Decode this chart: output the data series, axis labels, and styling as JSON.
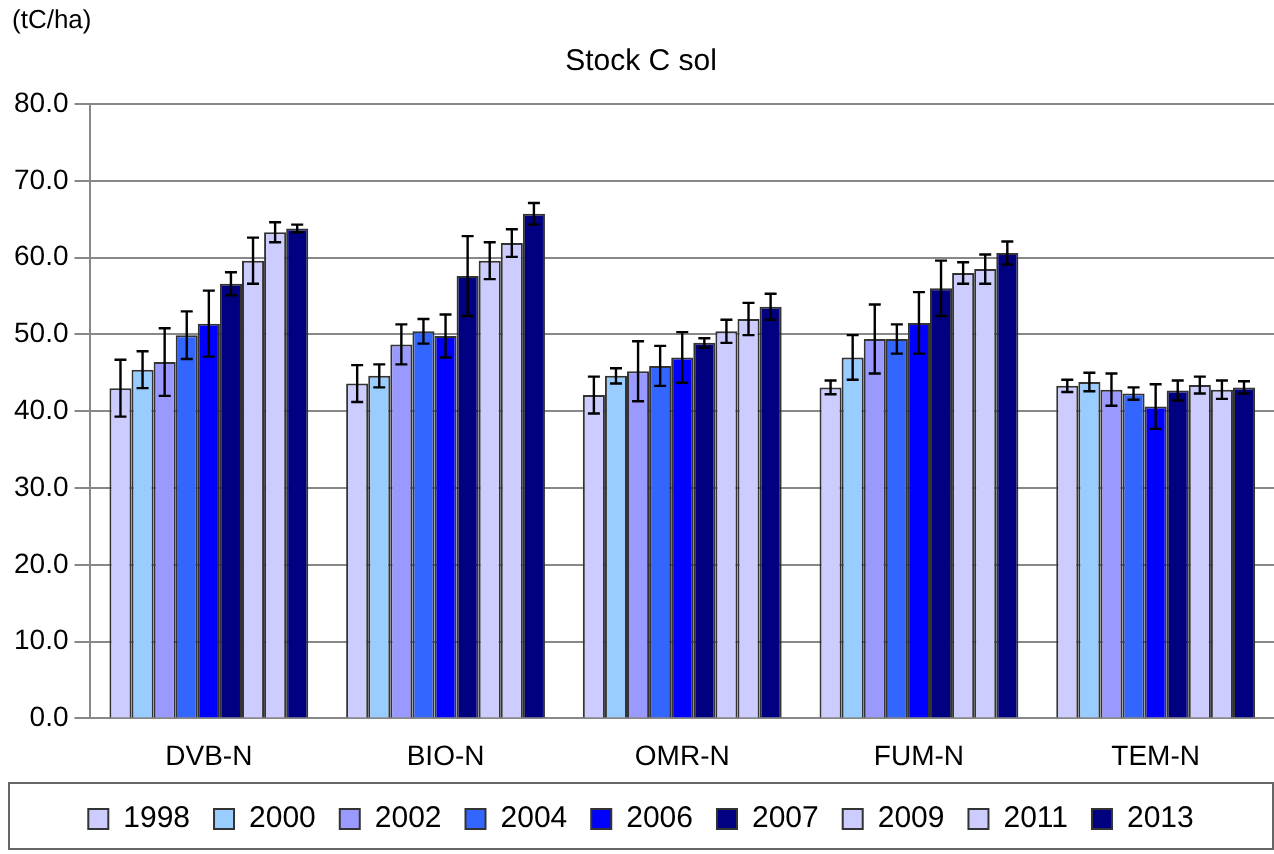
{
  "chart_data": {
    "type": "bar",
    "title": "Stock C sol",
    "ylabel": "(tC/ha)",
    "categories": [
      "DVB-N",
      "BIO-N",
      "OMR-N",
      "FUM-N",
      "TEM-N"
    ],
    "series": [
      {
        "name": "1998",
        "color": "#ccccff",
        "values": [
          43.0,
          43.6,
          42.1,
          43.1,
          43.3
        ],
        "errors": [
          3.7,
          2.4,
          2.4,
          0.9,
          0.8
        ]
      },
      {
        "name": "2000",
        "color": "#99ccff",
        "values": [
          45.4,
          44.6,
          44.6,
          47.0,
          43.8
        ],
        "errors": [
          2.4,
          1.5,
          1.0,
          2.9,
          1.2
        ]
      },
      {
        "name": "2002",
        "color": "#9999ff",
        "values": [
          46.4,
          48.7,
          45.2,
          49.4,
          42.8
        ],
        "errors": [
          4.4,
          2.6,
          3.9,
          4.5,
          2.1
        ]
      },
      {
        "name": "2004",
        "color": "#3366ff",
        "values": [
          49.9,
          50.4,
          45.9,
          49.4,
          42.3
        ],
        "errors": [
          3.1,
          1.6,
          2.6,
          1.9,
          0.8
        ]
      },
      {
        "name": "2006",
        "color": "#0000ff",
        "values": [
          51.4,
          49.8,
          47.0,
          51.5,
          40.6
        ],
        "errors": [
          4.3,
          2.8,
          3.3,
          4.0,
          2.9
        ]
      },
      {
        "name": "2007",
        "color": "#000080",
        "values": [
          56.6,
          57.6,
          48.9,
          56.0,
          42.7
        ],
        "errors": [
          1.5,
          5.2,
          0.6,
          3.6,
          1.3
        ]
      },
      {
        "name": "2009",
        "color": "#ccccff",
        "values": [
          59.6,
          59.6,
          50.4,
          58.0,
          43.4
        ],
        "errors": [
          3.0,
          2.4,
          1.5,
          1.4,
          1.1
        ]
      },
      {
        "name": "2011",
        "color": "#ccccff",
        "values": [
          63.3,
          61.9,
          52.0,
          58.5,
          42.8
        ],
        "errors": [
          1.3,
          1.8,
          2.1,
          1.9,
          1.2
        ]
      },
      {
        "name": "2013",
        "color": "#000080",
        "values": [
          63.8,
          65.7,
          53.6,
          60.6,
          43.1
        ],
        "errors": [
          0.5,
          1.4,
          1.7,
          1.5,
          0.8
        ]
      }
    ],
    "ylim": [
      0,
      80
    ],
    "yticks": [
      {
        "value": 0,
        "label": "0.0"
      },
      {
        "value": 10,
        "label": "10.0"
      },
      {
        "value": 20,
        "label": "20.0"
      },
      {
        "value": 30,
        "label": "30.0"
      },
      {
        "value": 40,
        "label": "40.0"
      },
      {
        "value": 50,
        "label": "50.0"
      },
      {
        "value": 60,
        "label": "60.0"
      },
      {
        "value": 70,
        "label": "70.0"
      },
      {
        "value": 80,
        "label": "80.0"
      }
    ],
    "grid": "y",
    "legend": "bottom"
  }
}
